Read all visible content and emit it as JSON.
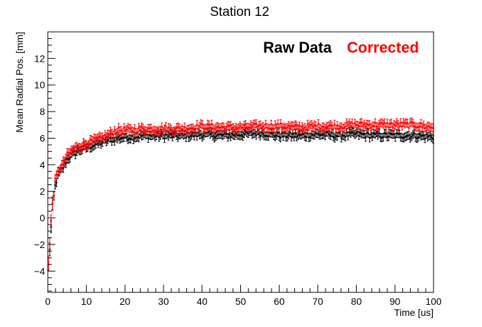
{
  "chart_data": {
    "type": "scatter",
    "title": "Station 12",
    "xlabel": "Time [us]",
    "ylabel": "Mean Radial Pos. [mm]",
    "xlim": [
      0,
      100
    ],
    "ylim": [
      -5.6,
      14
    ],
    "x_ticks": [
      0,
      10,
      20,
      30,
      40,
      50,
      60,
      70,
      80,
      90,
      100
    ],
    "x_tick_labels": [
      "0",
      "10",
      "20",
      "30",
      "40",
      "50",
      "60",
      "70",
      "80",
      "90",
      "100"
    ],
    "y_ticks": [
      -4,
      -2,
      0,
      2,
      4,
      6,
      8,
      10,
      12
    ],
    "y_tick_labels": [
      "−4",
      "−2",
      "0",
      "2",
      "4",
      "6",
      "8",
      "10",
      "12"
    ],
    "grid": false,
    "legend_placement": "top-right",
    "series": [
      {
        "name": "Raw Data",
        "color": "#000000",
        "x": [
          0.2,
          0.6,
          1.2,
          2,
          3,
          4,
          5,
          6,
          7,
          8,
          10,
          12,
          14,
          16,
          18,
          20,
          22,
          25,
          30,
          35,
          40,
          45,
          50,
          55,
          60,
          65,
          70,
          75,
          80,
          85,
          90,
          95,
          100
        ],
        "y": [
          -3.6,
          -1.8,
          0.8,
          2.6,
          3.4,
          3.8,
          4.4,
          4.7,
          4.9,
          5.1,
          5.3,
          5.5,
          5.7,
          5.9,
          6.0,
          6.1,
          6.1,
          6.2,
          6.2,
          6.2,
          6.3,
          6.2,
          6.3,
          6.4,
          6.2,
          6.2,
          6.3,
          6.2,
          6.3,
          6.2,
          6.2,
          6.2,
          6.1
        ],
        "error": 0.3
      },
      {
        "name": "Corrected",
        "color": "#ff0000",
        "x": [
          0.2,
          0.6,
          1.2,
          2,
          3,
          4,
          5,
          6,
          7,
          8,
          10,
          12,
          14,
          16,
          18,
          20,
          22,
          25,
          30,
          35,
          40,
          45,
          50,
          55,
          60,
          65,
          70,
          75,
          80,
          85,
          90,
          95,
          100
        ],
        "y": [
          -3.4,
          -1.5,
          1.1,
          2.9,
          3.7,
          4.1,
          4.7,
          5.0,
          5.2,
          5.4,
          5.6,
          5.8,
          6.0,
          6.3,
          6.6,
          6.6,
          6.6,
          6.7,
          6.7,
          6.7,
          6.9,
          6.8,
          6.8,
          6.9,
          6.9,
          6.8,
          6.9,
          6.9,
          7.0,
          7.0,
          7.0,
          7.0,
          6.8
        ],
        "error": 0.3
      }
    ]
  }
}
